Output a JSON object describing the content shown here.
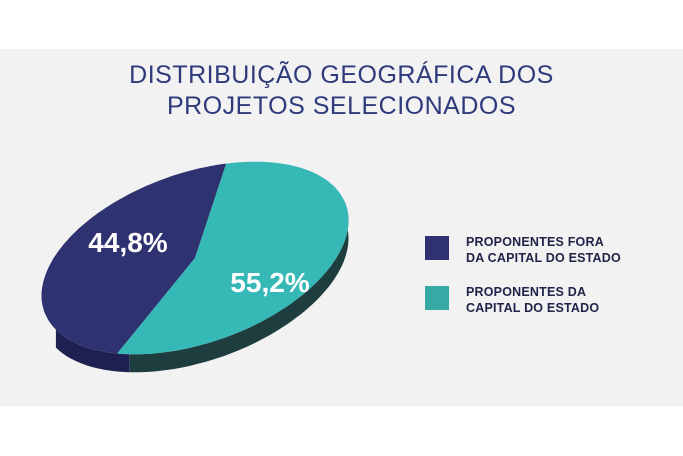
{
  "title_line1": "DISTRIBUIÇÃO GEOGRÁFICA DOS",
  "title_line2": "PROJETOS SELECIONADOS",
  "colors": {
    "panel": "#f2f2f2",
    "title": "#2e3a7c",
    "outside_top": "#2e3270",
    "outside_side": "#1d2050",
    "capital_top": "#35b8b6",
    "capital_side": "#1d3d3f"
  },
  "legend": [
    {
      "line1": "PROPONENTES FORA",
      "line2": "DA CAPITAL DO ESTADO",
      "color": "#2e3270"
    },
    {
      "line1": "PROPONENTES DA",
      "line2": "CAPITAL DO ESTADO",
      "color": "#35a9a4"
    }
  ],
  "chart_data": {
    "type": "pie",
    "title": "DISTRIBUIÇÃO GEOGRÁFICA DOS PROJETOS SELECIONADOS",
    "slices": [
      {
        "label": "PROPONENTES FORA DA CAPITAL DO ESTADO",
        "value": 44.8,
        "display": "44,8%"
      },
      {
        "label": "PROPONENTES DA CAPITAL DO ESTADO",
        "value": 55.2,
        "display": "55,2%"
      }
    ]
  }
}
